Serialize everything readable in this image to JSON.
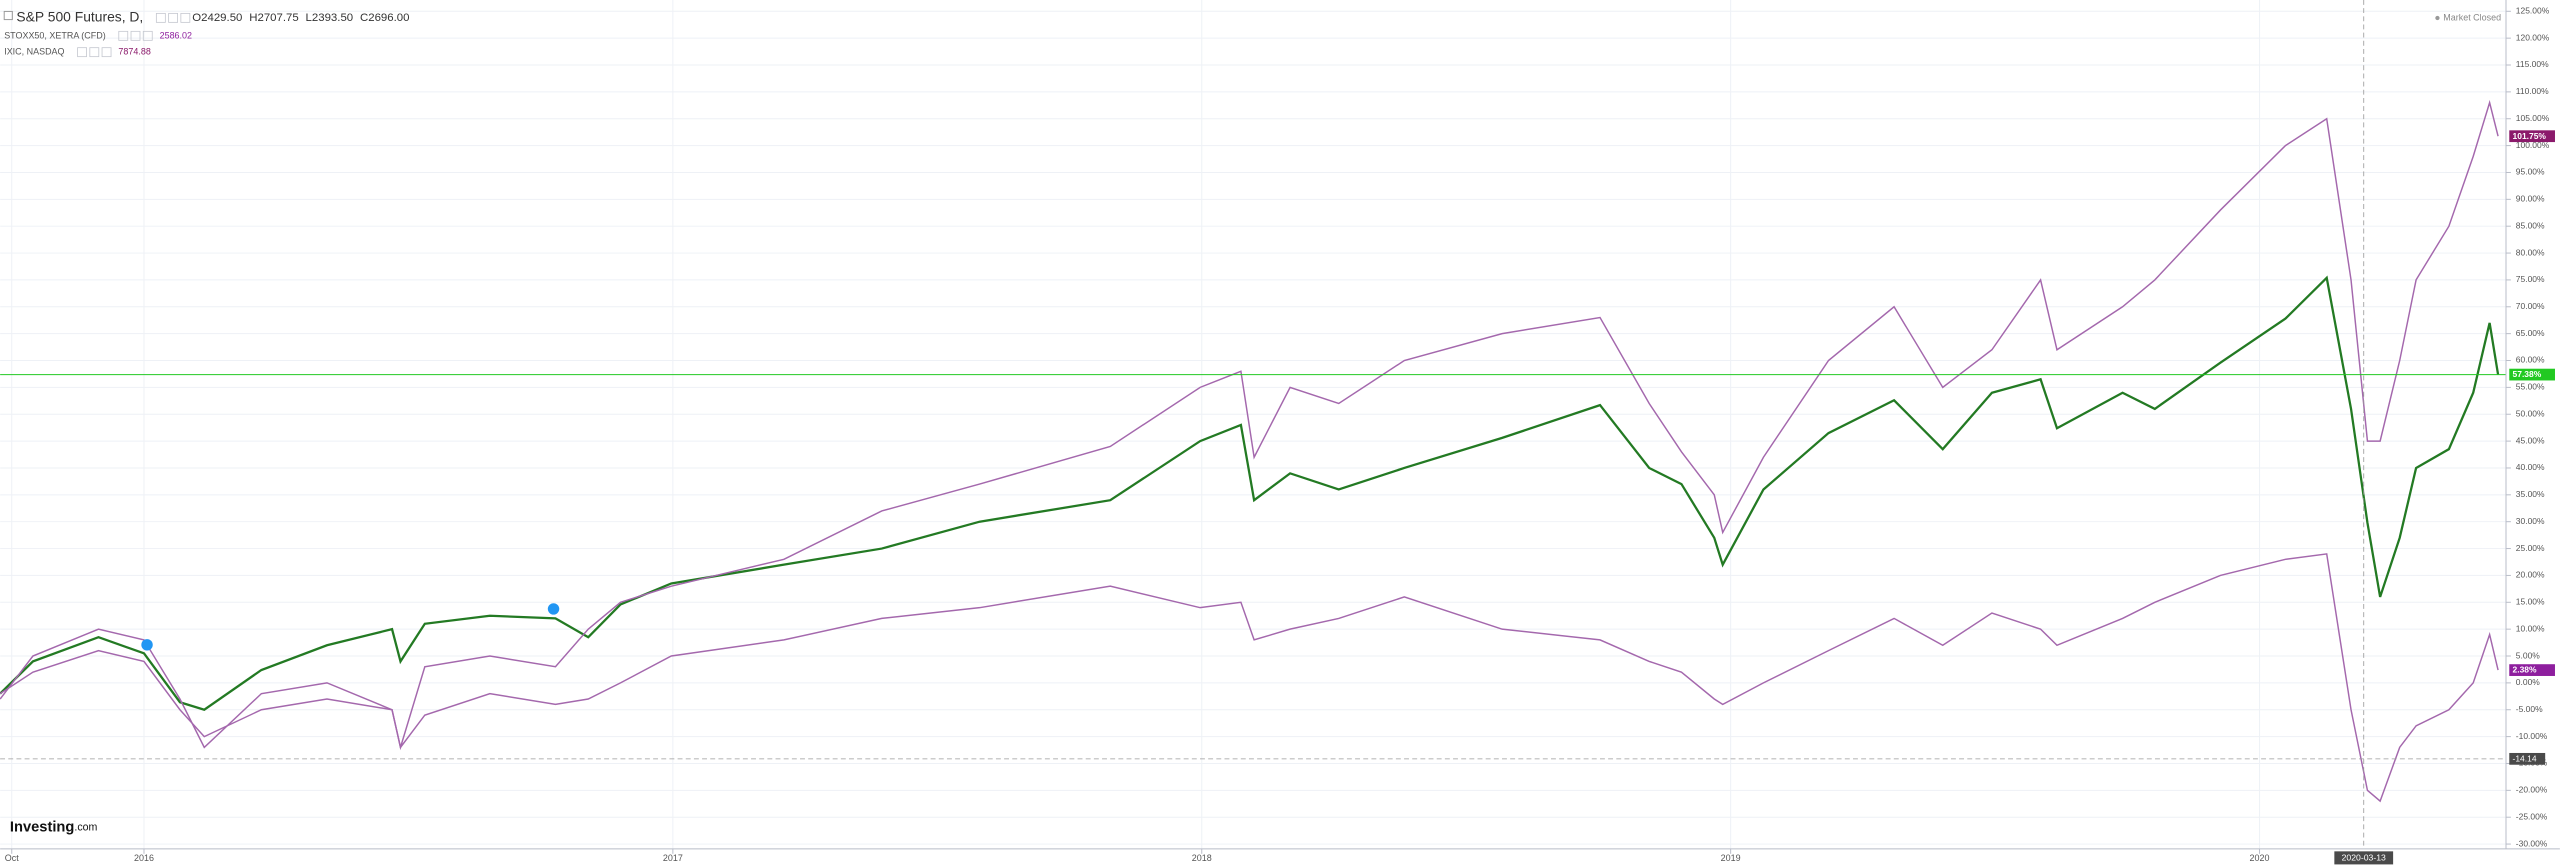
{
  "chart_data": {
    "type": "line",
    "status": "Market Closed",
    "brand": {
      "name": "Investing",
      "suffix": ".com"
    },
    "x": [
      2015.728,
      2015.79,
      2015.914,
      2016.0,
      2016.068,
      2016.114,
      2016.222,
      2016.346,
      2016.469,
      2016.485,
      2016.531,
      2016.654,
      2016.778,
      2016.84,
      2016.901,
      2016.997,
      2017.21,
      2017.395,
      2017.58,
      2017.827,
      2017.997,
      2018.074,
      2018.099,
      2018.167,
      2018.259,
      2018.383,
      2018.568,
      2018.753,
      2018.846,
      2018.907,
      2018.969,
      2018.985,
      2019.062,
      2019.185,
      2019.309,
      2019.401,
      2019.494,
      2019.586,
      2019.617,
      2019.741,
      2019.802,
      2019.926,
      2020.049,
      2020.127,
      2020.173,
      2020.204,
      2020.228,
      2020.265,
      2020.296,
      2020.358,
      2020.404,
      2020.435,
      2020.451
    ],
    "series": [
      {
        "name": "S&P 500 Futures, D,",
        "color": "#237a23",
        "label_color": "#22c922",
        "quote": [
          {
            "value": 2429.5,
            "label": "O2429.50"
          },
          {
            "value": 2707.75,
            "label": "H2707.75"
          },
          {
            "value": 2393.5,
            "label": "L2393.50"
          },
          {
            "value": 2696.0,
            "label": "C2696.00"
          }
        ],
        "values": [
          -2,
          4,
          8.5,
          5.5,
          -3.6,
          -5,
          2.4,
          7,
          10,
          4,
          11,
          12.5,
          12,
          8.5,
          14.6,
          18.5,
          22,
          25,
          30,
          34,
          45,
          48,
          34,
          39,
          36,
          40,
          45.6,
          51.7,
          40,
          37,
          27,
          22,
          36,
          46.5,
          52.6,
          43.5,
          54,
          56.5,
          47.4,
          54,
          51,
          59.6,
          67.8,
          75.4,
          51,
          29.8,
          16,
          27,
          40,
          43.5,
          54,
          67,
          57.38
        ],
        "value_labels": [
          null,
          null,
          null,
          null,
          null,
          null,
          null,
          null,
          null,
          null,
          null,
          null,
          null,
          null,
          null,
          null,
          null,
          null,
          null,
          null,
          null,
          null,
          null,
          null,
          null,
          null,
          null,
          null,
          null,
          null,
          null,
          null,
          null,
          null,
          null,
          null,
          null,
          null,
          null,
          null,
          null,
          null,
          null,
          null,
          null,
          null,
          null,
          null,
          null,
          null,
          null,
          null,
          "57.38%"
        ]
      },
      {
        "name": "STOXX50, XETRA (CFD)",
        "color": "#a468ad",
        "label_color": "#8e1e9e",
        "quote": [
          {
            "value": 2586.02,
            "label": "2586.02"
          }
        ],
        "values": [
          -2,
          2,
          6,
          4,
          -5,
          -10,
          -5,
          -3,
          -5,
          -12,
          -6,
          -2,
          -4,
          -3,
          0,
          5,
          8,
          12,
          14,
          18,
          14,
          15,
          8,
          10,
          12,
          16,
          10,
          8,
          4,
          2,
          -3,
          -4,
          0,
          6,
          12,
          7,
          13,
          10,
          7,
          12,
          15,
          20,
          23,
          24,
          -5,
          -20,
          -22,
          -12,
          -8,
          -5,
          0,
          9,
          2.38
        ],
        "value_labels": [
          null,
          null,
          null,
          null,
          null,
          null,
          null,
          null,
          null,
          null,
          null,
          null,
          null,
          null,
          null,
          null,
          null,
          null,
          null,
          null,
          null,
          null,
          null,
          null,
          null,
          null,
          null,
          null,
          null,
          null,
          null,
          null,
          null,
          null,
          null,
          null,
          null,
          null,
          null,
          null,
          null,
          null,
          null,
          null,
          null,
          null,
          null,
          null,
          null,
          null,
          null,
          null,
          "2.38%"
        ]
      },
      {
        "name": "IXIC, NASDAQ",
        "color": "#a468ad",
        "label_color": "#8b1a6b",
        "quote": [
          {
            "value": 7874.88,
            "label": "7874.88"
          }
        ],
        "values": [
          -3,
          5,
          10,
          8,
          -3,
          -12,
          -2,
          0,
          -5,
          -12,
          3,
          5,
          3,
          10,
          15,
          18,
          23,
          32,
          37,
          44,
          55,
          58,
          42,
          55,
          52,
          60,
          65,
          68,
          52,
          43,
          35,
          28,
          42,
          60,
          70,
          55,
          62,
          75,
          62,
          70,
          75,
          88,
          100,
          105,
          75,
          45,
          45,
          60,
          75,
          85,
          98,
          108,
          101.75
        ],
        "value_labels": [
          null,
          null,
          null,
          null,
          null,
          null,
          null,
          null,
          null,
          null,
          null,
          null,
          null,
          null,
          null,
          null,
          null,
          null,
          null,
          null,
          null,
          null,
          null,
          null,
          null,
          null,
          null,
          null,
          null,
          null,
          null,
          null,
          null,
          null,
          null,
          null,
          null,
          null,
          null,
          null,
          null,
          null,
          null,
          null,
          null,
          null,
          null,
          null,
          null,
          null,
          null,
          null,
          "101.75%"
        ]
      }
    ],
    "xlim": [
      2015.728,
      2020.466
    ],
    "xticks": [
      {
        "value": 2015.75,
        "label": "Oct"
      },
      2016,
      2017,
      2018,
      2019,
      2020
    ],
    "ylim": [
      -30.9,
      127.1
    ],
    "yticks": [
      {
        "value": -30,
        "label": "-30.00%"
      },
      {
        "value": -25,
        "label": "-25.00%"
      },
      {
        "value": -20,
        "label": "-20.00%"
      },
      {
        "value": -15,
        "label": "-15.00%"
      },
      {
        "value": -10,
        "label": "-10.00%"
      },
      {
        "value": -5,
        "label": "-5.00%"
      },
      {
        "value": 0,
        "label": "0.00%"
      },
      {
        "value": 5,
        "label": "5.00%"
      },
      {
        "value": 10,
        "label": "10.00%"
      },
      {
        "value": 15,
        "label": "15.00%"
      },
      {
        "value": 20,
        "label": "20.00%"
      },
      {
        "value": 25,
        "label": "25.00%"
      },
      {
        "value": 30,
        "label": "30.00%"
      },
      {
        "value": 35,
        "label": "35.00%"
      },
      {
        "value": 40,
        "label": "40.00%"
      },
      {
        "value": 45,
        "label": "45.00%"
      },
      {
        "value": 50,
        "label": "50.00%"
      },
      {
        "value": 55,
        "label": "55.00%"
      },
      {
        "value": 60,
        "label": "60.00%"
      },
      {
        "value": 65,
        "label": "65.00%"
      },
      {
        "value": 70,
        "label": "70.00%"
      },
      {
        "value": 75,
        "label": "75.00%"
      },
      {
        "value": 80,
        "label": "80.00%"
      },
      {
        "value": 85,
        "label": "85.00%"
      },
      {
        "value": 90,
        "label": "90.00%"
      },
      {
        "value": 95,
        "label": "95.00%"
      },
      {
        "value": 100,
        "label": "100.00%"
      },
      {
        "value": 105,
        "label": "105.00%"
      },
      {
        "value": 110,
        "label": "110.00%"
      },
      {
        "value": 115,
        "label": "115.00%"
      },
      {
        "value": 120,
        "label": "120.00%"
      },
      {
        "value": 125,
        "label": "125.00%"
      }
    ],
    "grid": true,
    "crosshair": {
      "x": {
        "value": 2020.197,
        "label": "2020-03-13"
      },
      "y": {
        "value": -14.14,
        "label": "-14.14"
      }
    }
  }
}
